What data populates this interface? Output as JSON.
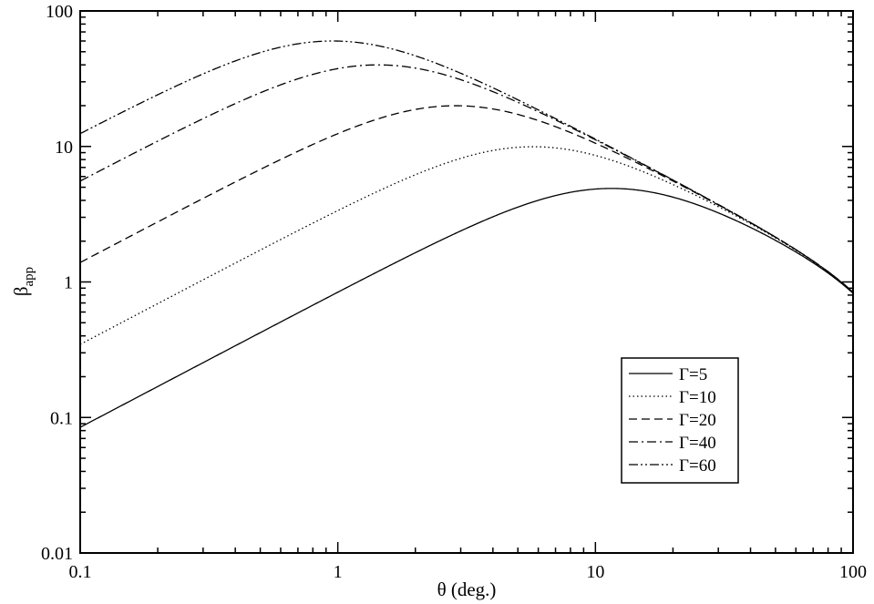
{
  "chart_data": {
    "type": "line",
    "xlabel": "θ (deg.)",
    "ylabel_main": "β",
    "ylabel_sub": "app",
    "xscale": "log",
    "yscale": "log",
    "xlim": [
      0.1,
      100
    ],
    "ylim": [
      0.01,
      100
    ],
    "xticks": [
      "0.1",
      "1",
      "10",
      "100"
    ],
    "yticks": [
      "0.01",
      "0.1",
      "1",
      "10",
      "100"
    ],
    "grid": false,
    "legend_position": "bottom-right",
    "series": [
      {
        "name": "Γ=5",
        "gamma": 5,
        "dash": "solid"
      },
      {
        "name": "Γ=10",
        "gamma": 10,
        "dash": "dotted"
      },
      {
        "name": "Γ=20",
        "gamma": 20,
        "dash": "dashed"
      },
      {
        "name": "Γ=40",
        "gamma": 40,
        "dash": "dash-dot"
      },
      {
        "name": "Γ=60",
        "gamma": 60,
        "dash": "dash-dot-dot"
      }
    ]
  }
}
